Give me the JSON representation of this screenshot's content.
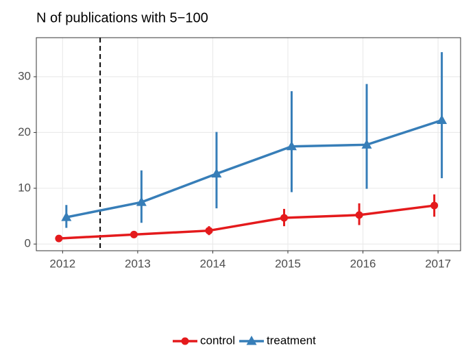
{
  "chart_data": {
    "type": "line",
    "title": "N of publications with 5−100",
    "x": [
      2012,
      2013,
      2014,
      2015,
      2016,
      2017
    ],
    "xlim": [
      2011.65,
      2017.3
    ],
    "xticks": [
      2012,
      2013,
      2014,
      2015,
      2016,
      2017
    ],
    "ylim": [
      -1.2,
      37
    ],
    "yticks": [
      0,
      10,
      20,
      30
    ],
    "grid": true,
    "vlines": [
      2012.5
    ],
    "legend": "bottom",
    "series": [
      {
        "name": "control",
        "color": "#e41a1c",
        "marker": "circle",
        "values": [
          1.0,
          1.7,
          2.4,
          4.7,
          5.2,
          6.9
        ],
        "lower": [
          0.9,
          1.4,
          1.6,
          3.2,
          3.4,
          4.9
        ],
        "upper": [
          1.1,
          2.0,
          3.2,
          6.3,
          7.3,
          8.9
        ]
      },
      {
        "name": "treatment",
        "color": "#377eb8",
        "marker": "triangle",
        "values": [
          4.8,
          7.5,
          12.6,
          17.5,
          17.8,
          22.2
        ],
        "lower": [
          2.9,
          3.8,
          6.4,
          9.3,
          9.9,
          11.8
        ],
        "upper": [
          7.0,
          13.2,
          20.1,
          27.4,
          28.7,
          34.4
        ]
      }
    ]
  }
}
